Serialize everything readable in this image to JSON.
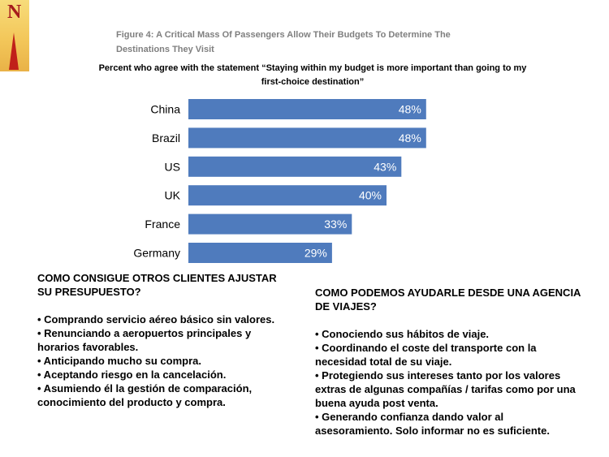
{
  "logo": {
    "letter": "N"
  },
  "figure_title": "Figure 4: A Critical Mass Of Passengers Allow Their Budgets To Determine The Destinations They Visit",
  "subtitle": "Percent who agree with the statement “Staying within my budget is more important than going to my first-choice destination”",
  "chart_data": {
    "type": "bar",
    "orientation": "horizontal",
    "categories": [
      "China",
      "Brazil",
      "US",
      "UK",
      "France",
      "Germany"
    ],
    "values": [
      48,
      48,
      43,
      40,
      33,
      29
    ],
    "data_labels": [
      "48%",
      "48%",
      "43%",
      "40%",
      "33%",
      "29%"
    ],
    "unit": "%",
    "bar_color": "#4f7bbd",
    "label_color": "#ffffff",
    "grid": false,
    "xlim": [
      0,
      50
    ]
  },
  "left_section": {
    "heading": "COMO CONSIGUE OTROS CLIENTES AJUSTAR SU PRESUPUESTO?",
    "items": [
      "• Comprando servicio aéreo básico sin valores.",
      "• Renunciando a aeropuertos principales y horarios favorables.",
      "• Anticipando mucho su compra.",
      "• Aceptando riesgo en la cancelación.",
      "• Asumiendo él la gestión de comparación, conocimiento del producto y compra."
    ]
  },
  "right_section": {
    "heading": "COMO PODEMOS AYUDARLE DESDE UNA AGENCIA DE VIAJES?",
    "items": [
      "• Conociendo sus hábitos de viaje.",
      "• Coordinando el coste del transporte con la necesidad total de su viaje.",
      "• Protegiendo sus intereses tanto por los valores extras de algunas compañías / tarifas como por una buena ayuda post venta.",
      "• Generando confianza  dando valor al asesoramiento. Solo informar no es suficiente."
    ]
  }
}
